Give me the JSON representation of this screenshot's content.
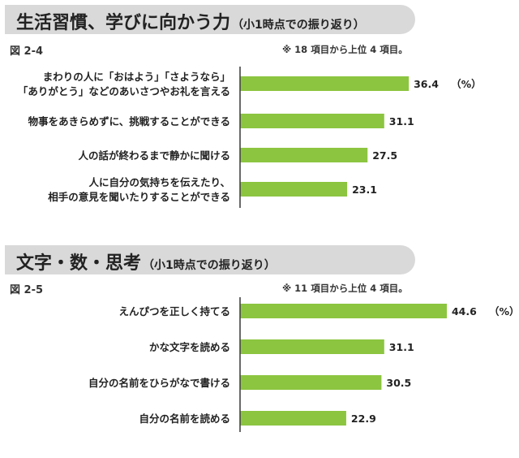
{
  "sections": [
    {
      "title": "生活習慣、学びに向かう力",
      "subtitle": "（小1時点での振り返り）",
      "figure_label": "図 2-4",
      "note": "※ 18 項目から上位 4 項目。"
    },
    {
      "title": "文字・数・思考",
      "subtitle": "（小1時点での振り返り）",
      "figure_label": "図 2-5",
      "note": "※ 11 項目から上位 4 項目。"
    }
  ],
  "colors": {
    "bar": "#8cc540",
    "header_bg": "#d9d9d9"
  },
  "chart_data": [
    {
      "type": "bar",
      "orientation": "horizontal",
      "title": "",
      "unit_label": "（%）",
      "categories": [
        [
          "まわりの人に「おはよう」「さようなら」",
          "「ありがとう」などのあいさつやお礼を言える"
        ],
        [
          "物事をあきらめずに、挑戦することができる"
        ],
        [
          "人の話が終わるまで静かに聞ける"
        ],
        [
          "人に自分の気持ちを伝えたり、",
          "相手の意見を聞いたりすることができる"
        ]
      ],
      "values": [
        36.4,
        31.1,
        27.5,
        23.1
      ],
      "value_labels": [
        "36.4",
        "31.1",
        "27.5",
        "23.1"
      ],
      "xlim": [
        0,
        46
      ]
    },
    {
      "type": "bar",
      "orientation": "horizontal",
      "title": "",
      "unit_label": "（%）",
      "categories": [
        [
          "えんぴつを正しく持てる"
        ],
        [
          "かな文字を読める"
        ],
        [
          "自分の名前をひらがなで書ける"
        ],
        [
          "自分の名前を読める"
        ]
      ],
      "values": [
        44.6,
        31.1,
        30.5,
        22.9
      ],
      "value_labels": [
        "44.6",
        "31.1",
        "30.5",
        "22.9"
      ],
      "xlim": [
        0,
        46
      ]
    }
  ]
}
